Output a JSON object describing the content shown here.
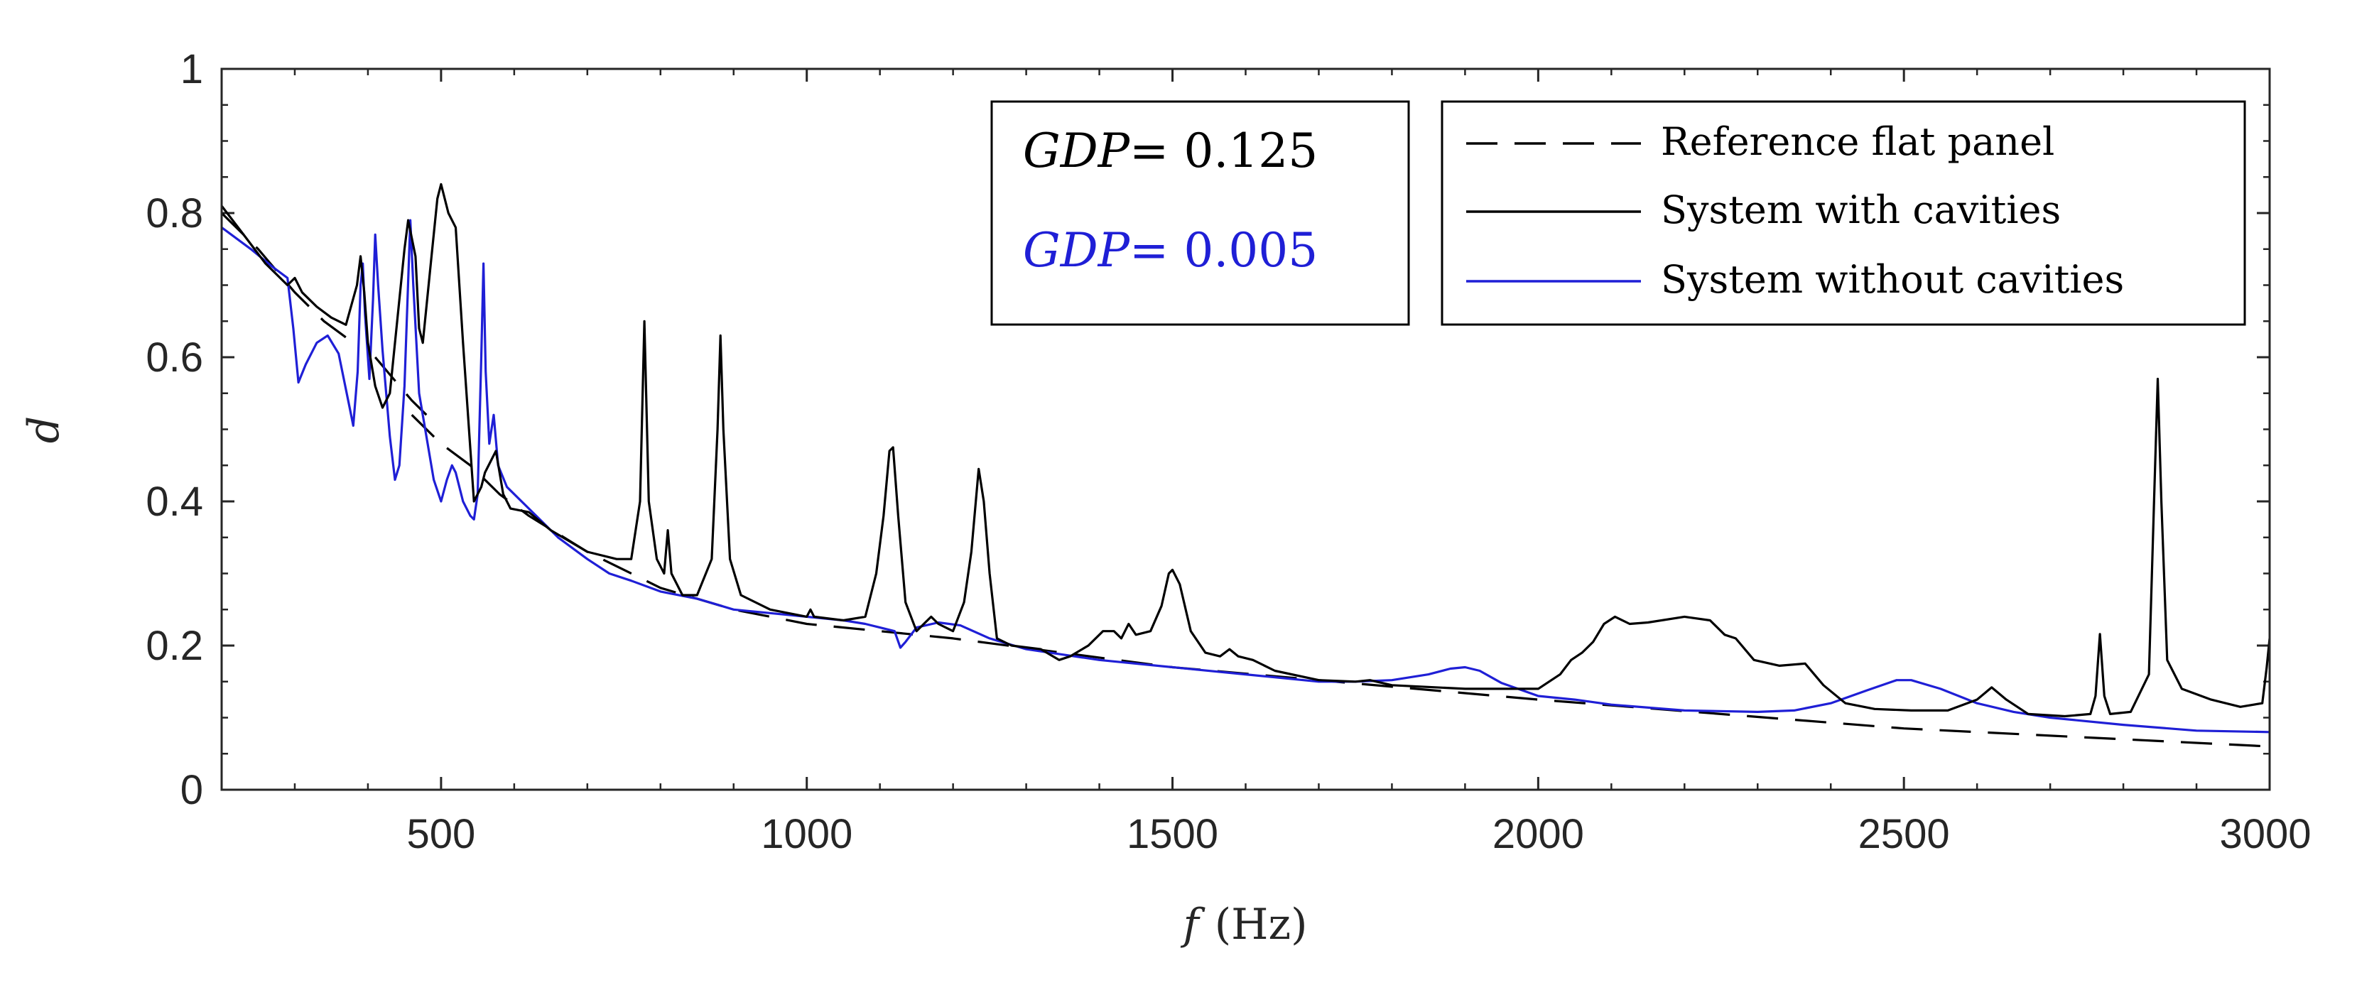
{
  "chart_data": {
    "type": "line",
    "title": "",
    "xlabel": {
      "var": "f",
      "unit": "(Hz)"
    },
    "ylabel": "d",
    "xlim": [
      200,
      3000
    ],
    "ylim": [
      0,
      1
    ],
    "xticks": [
      500,
      1000,
      1500,
      2000,
      2500,
      3000
    ],
    "xtick_labels": [
      "500",
      "1000",
      "1500",
      "2000",
      "2500",
      "3000"
    ],
    "yticks": [
      0,
      0.2,
      0.4,
      0.6,
      0.8,
      1
    ],
    "ytick_labels": [
      "0",
      "0.2",
      "0.4",
      "0.6",
      "0.8",
      "1"
    ],
    "grid": false,
    "legend_position": "top-right",
    "colors": {
      "reference": "#000000",
      "with_cavities": "#000000",
      "without_cavities": "#1f1fd6"
    },
    "annotations": {
      "gdp_black": {
        "var": "GDP",
        "eq": "= ",
        "value": "0.125",
        "color": "#000000"
      },
      "gdp_blue": {
        "var": "GDP",
        "eq": "= ",
        "value": "0.005",
        "color": "#1f1fd6"
      }
    },
    "series": [
      {
        "name": "Reference flat panel",
        "style": "dashed",
        "segments": [
          [
            [
              200,
              0.8
            ],
            [
              250,
              0.75
            ],
            [
              300,
              0.69
            ],
            [
              340,
              0.65
            ],
            [
              380,
              0.62
            ]
          ],
          [
            [
              410,
              0.6
            ],
            [
              460,
              0.54
            ],
            [
              480,
              0.52
            ]
          ],
          [
            [
              460,
              0.52
            ],
            [
              500,
              0.48
            ],
            [
              540,
              0.45
            ],
            [
              580,
              0.41
            ],
            [
              620,
              0.38
            ],
            [
              700,
              0.33
            ],
            [
              800,
              0.28
            ],
            [
              900,
              0.25
            ],
            [
              1000,
              0.23
            ],
            [
              1200,
              0.21
            ],
            [
              1500,
              0.17
            ],
            [
              2000,
              0.125
            ],
            [
              2500,
              0.085
            ],
            [
              3000,
              0.06
            ]
          ]
        ]
      },
      {
        "name": "System with cavities",
        "style": "solid",
        "points": [
          [
            200,
            0.81
          ],
          [
            230,
            0.77
          ],
          [
            260,
            0.73
          ],
          [
            290,
            0.7
          ],
          [
            300,
            0.71
          ],
          [
            310,
            0.69
          ],
          [
            330,
            0.67
          ],
          [
            350,
            0.655
          ],
          [
            370,
            0.645
          ],
          [
            385,
            0.7
          ],
          [
            390,
            0.74
          ],
          [
            395,
            0.69
          ],
          [
            400,
            0.62
          ],
          [
            410,
            0.56
          ],
          [
            420,
            0.53
          ],
          [
            430,
            0.55
          ],
          [
            440,
            0.65
          ],
          [
            450,
            0.75
          ],
          [
            455,
            0.79
          ],
          [
            465,
            0.74
          ],
          [
            470,
            0.64
          ],
          [
            475,
            0.62
          ],
          [
            485,
            0.72
          ],
          [
            495,
            0.82
          ],
          [
            500,
            0.84
          ],
          [
            510,
            0.8
          ],
          [
            520,
            0.78
          ],
          [
            530,
            0.62
          ],
          [
            545,
            0.4
          ],
          [
            555,
            0.42
          ],
          [
            560,
            0.44
          ],
          [
            575,
            0.47
          ],
          [
            585,
            0.41
          ],
          [
            595,
            0.39
          ],
          [
            620,
            0.385
          ],
          [
            650,
            0.36
          ],
          [
            700,
            0.33
          ],
          [
            740,
            0.32
          ],
          [
            760,
            0.32
          ],
          [
            772,
            0.4
          ],
          [
            778,
            0.65
          ],
          [
            784,
            0.4
          ],
          [
            795,
            0.32
          ],
          [
            805,
            0.3
          ],
          [
            810,
            0.36
          ],
          [
            815,
            0.3
          ],
          [
            830,
            0.27
          ],
          [
            850,
            0.27
          ],
          [
            870,
            0.32
          ],
          [
            878,
            0.5
          ],
          [
            882,
            0.63
          ],
          [
            886,
            0.5
          ],
          [
            895,
            0.32
          ],
          [
            910,
            0.27
          ],
          [
            950,
            0.25
          ],
          [
            1000,
            0.24
          ],
          [
            1005,
            0.25
          ],
          [
            1010,
            0.24
          ],
          [
            1050,
            0.235
          ],
          [
            1080,
            0.24
          ],
          [
            1095,
            0.3
          ],
          [
            1105,
            0.38
          ],
          [
            1113,
            0.47
          ],
          [
            1118,
            0.475
          ],
          [
            1125,
            0.38
          ],
          [
            1135,
            0.26
          ],
          [
            1150,
            0.22
          ],
          [
            1160,
            0.23
          ],
          [
            1170,
            0.24
          ],
          [
            1180,
            0.23
          ],
          [
            1200,
            0.22
          ],
          [
            1215,
            0.26
          ],
          [
            1225,
            0.33
          ],
          [
            1235,
            0.445
          ],
          [
            1242,
            0.4
          ],
          [
            1250,
            0.3
          ],
          [
            1260,
            0.21
          ],
          [
            1280,
            0.2
          ],
          [
            1320,
            0.195
          ],
          [
            1345,
            0.18
          ],
          [
            1360,
            0.185
          ],
          [
            1385,
            0.2
          ],
          [
            1405,
            0.22
          ],
          [
            1420,
            0.22
          ],
          [
            1430,
            0.21
          ],
          [
            1440,
            0.23
          ],
          [
            1450,
            0.215
          ],
          [
            1470,
            0.22
          ],
          [
            1485,
            0.255
          ],
          [
            1495,
            0.3
          ],
          [
            1500,
            0.305
          ],
          [
            1510,
            0.285
          ],
          [
            1525,
            0.22
          ],
          [
            1545,
            0.19
          ],
          [
            1565,
            0.185
          ],
          [
            1578,
            0.195
          ],
          [
            1590,
            0.185
          ],
          [
            1610,
            0.18
          ],
          [
            1640,
            0.165
          ],
          [
            1700,
            0.152
          ],
          [
            1750,
            0.15
          ],
          [
            1770,
            0.152
          ],
          [
            1800,
            0.145
          ],
          [
            1900,
            0.14
          ],
          [
            2000,
            0.14
          ],
          [
            2030,
            0.16
          ],
          [
            2045,
            0.18
          ],
          [
            2060,
            0.19
          ],
          [
            2075,
            0.205
          ],
          [
            2090,
            0.23
          ],
          [
            2105,
            0.24
          ],
          [
            2125,
            0.23
          ],
          [
            2150,
            0.232
          ],
          [
            2200,
            0.24
          ],
          [
            2235,
            0.235
          ],
          [
            2255,
            0.215
          ],
          [
            2270,
            0.21
          ],
          [
            2295,
            0.18
          ],
          [
            2330,
            0.172
          ],
          [
            2365,
            0.175
          ],
          [
            2390,
            0.145
          ],
          [
            2420,
            0.12
          ],
          [
            2460,
            0.112
          ],
          [
            2510,
            0.11
          ],
          [
            2560,
            0.11
          ],
          [
            2600,
            0.125
          ],
          [
            2620,
            0.142
          ],
          [
            2640,
            0.125
          ],
          [
            2670,
            0.105
          ],
          [
            2720,
            0.102
          ],
          [
            2755,
            0.105
          ],
          [
            2762,
            0.13
          ],
          [
            2768,
            0.216
          ],
          [
            2774,
            0.13
          ],
          [
            2782,
            0.105
          ],
          [
            2810,
            0.108
          ],
          [
            2835,
            0.16
          ],
          [
            2842,
            0.4
          ],
          [
            2847,
            0.57
          ],
          [
            2852,
            0.4
          ],
          [
            2860,
            0.18
          ],
          [
            2880,
            0.14
          ],
          [
            2920,
            0.125
          ],
          [
            2960,
            0.115
          ],
          [
            2990,
            0.12
          ],
          [
            2996,
            0.17
          ],
          [
            3000,
            0.21
          ]
        ]
      },
      {
        "name": "System without cavities",
        "style": "solid",
        "points": [
          [
            200,
            0.78
          ],
          [
            240,
            0.75
          ],
          [
            270,
            0.725
          ],
          [
            290,
            0.71
          ],
          [
            298,
            0.64
          ],
          [
            305,
            0.565
          ],
          [
            315,
            0.59
          ],
          [
            330,
            0.62
          ],
          [
            345,
            0.63
          ],
          [
            360,
            0.605
          ],
          [
            375,
            0.53
          ],
          [
            380,
            0.505
          ],
          [
            386,
            0.58
          ],
          [
            390,
            0.7
          ],
          [
            393,
            0.73
          ],
          [
            396,
            0.66
          ],
          [
            402,
            0.57
          ],
          [
            407,
            0.68
          ],
          [
            410,
            0.77
          ],
          [
            414,
            0.7
          ],
          [
            420,
            0.61
          ],
          [
            430,
            0.49
          ],
          [
            437,
            0.43
          ],
          [
            443,
            0.45
          ],
          [
            450,
            0.56
          ],
          [
            458,
            0.79
          ],
          [
            462,
            0.7
          ],
          [
            470,
            0.55
          ],
          [
            480,
            0.49
          ],
          [
            490,
            0.43
          ],
          [
            500,
            0.4
          ],
          [
            508,
            0.43
          ],
          [
            515,
            0.45
          ],
          [
            520,
            0.44
          ],
          [
            530,
            0.4
          ],
          [
            540,
            0.38
          ],
          [
            545,
            0.375
          ],
          [
            550,
            0.41
          ],
          [
            555,
            0.6
          ],
          [
            558,
            0.73
          ],
          [
            561,
            0.58
          ],
          [
            566,
            0.48
          ],
          [
            572,
            0.52
          ],
          [
            578,
            0.45
          ],
          [
            590,
            0.42
          ],
          [
            620,
            0.39
          ],
          [
            660,
            0.35
          ],
          [
            700,
            0.32
          ],
          [
            730,
            0.3
          ],
          [
            760,
            0.29
          ],
          [
            800,
            0.275
          ],
          [
            850,
            0.265
          ],
          [
            900,
            0.25
          ],
          [
            950,
            0.245
          ],
          [
            1000,
            0.24
          ],
          [
            1050,
            0.235
          ],
          [
            1080,
            0.23
          ],
          [
            1100,
            0.225
          ],
          [
            1120,
            0.22
          ],
          [
            1128,
            0.197
          ],
          [
            1135,
            0.205
          ],
          [
            1150,
            0.225
          ],
          [
            1180,
            0.232
          ],
          [
            1210,
            0.228
          ],
          [
            1250,
            0.21
          ],
          [
            1300,
            0.195
          ],
          [
            1400,
            0.18
          ],
          [
            1500,
            0.17
          ],
          [
            1600,
            0.16
          ],
          [
            1700,
            0.15
          ],
          [
            1750,
            0.15
          ],
          [
            1800,
            0.152
          ],
          [
            1850,
            0.16
          ],
          [
            1880,
            0.168
          ],
          [
            1900,
            0.17
          ],
          [
            1920,
            0.165
          ],
          [
            1950,
            0.148
          ],
          [
            2000,
            0.13
          ],
          [
            2050,
            0.125
          ],
          [
            2100,
            0.118
          ],
          [
            2200,
            0.11
          ],
          [
            2300,
            0.108
          ],
          [
            2350,
            0.11
          ],
          [
            2400,
            0.12
          ],
          [
            2450,
            0.138
          ],
          [
            2490,
            0.152
          ],
          [
            2510,
            0.152
          ],
          [
            2550,
            0.14
          ],
          [
            2600,
            0.12
          ],
          [
            2650,
            0.108
          ],
          [
            2700,
            0.1
          ],
          [
            2800,
            0.09
          ],
          [
            2900,
            0.082
          ],
          [
            3000,
            0.08
          ]
        ]
      }
    ]
  }
}
